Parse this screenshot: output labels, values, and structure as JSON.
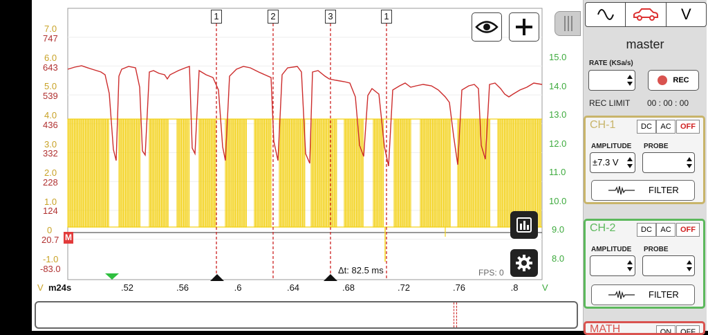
{
  "channel_panel": {
    "mode_icons": [
      "sine-wave-icon",
      "car-icon",
      "v-icon"
    ],
    "v_label": "V",
    "title": "master",
    "rate_label": "RATE (KSa/s)",
    "rec_label": "REC",
    "rec_limit_label": "REC LIMIT",
    "rec_limit_value": "00 : 00 : 00",
    "ch1": {
      "name": "CH-1",
      "dc": "DC",
      "ac": "AC",
      "off": "OFF",
      "amplitude_label": "AMPLITUDE",
      "probe_label": "PROBE",
      "amplitude_value": "±7.3 V",
      "filter_label": "FILTER",
      "color": "#c8b46a"
    },
    "ch2": {
      "name": "CH-2",
      "dc": "DC",
      "ac": "AC",
      "off": "OFF",
      "amplitude_label": "AMPLITUDE",
      "probe_label": "PROBE",
      "amplitude_value": "",
      "filter_label": "FILTER",
      "color": "#5cb85c"
    },
    "math_label": "MATH",
    "math_on": "ON",
    "math_off": "OFF"
  },
  "scope": {
    "cursors": [
      "1",
      "2",
      "3",
      "1"
    ],
    "delta_label": "Δt: 82.5 ms",
    "fps_label": "FPS: 0",
    "marker_label": "M",
    "marker_value": "20.7",
    "x_start": "m24s",
    "x_unit_left": "V",
    "x_unit_right": "V",
    "left_axis_scale1": [
      "7.0",
      "6.0",
      "5.0",
      "4.0",
      "3.0",
      "2.0",
      "1.0",
      "0",
      "-1.0"
    ],
    "left_axis_scale2": [
      "747",
      "643",
      "539",
      "436",
      "332",
      "228",
      "124",
      "-83.0"
    ],
    "right_axis": [
      "15.0",
      "14.0",
      "13.0",
      "12.0",
      "11.0",
      "10.0",
      "9.0",
      "8.0"
    ],
    "x_ticks": [
      ".52",
      ".56",
      ".6",
      ".64",
      ".68",
      ".72",
      ".76",
      ".8"
    ]
  },
  "colors": {
    "red_trace": "#cc2b2b",
    "yellow_trace": "#f3d21b",
    "green_axis": "#3daa3d",
    "left_axis_scale1": "#c8a226",
    "left_axis_scale2": "#b03030",
    "cursor": "#cc2020"
  }
}
